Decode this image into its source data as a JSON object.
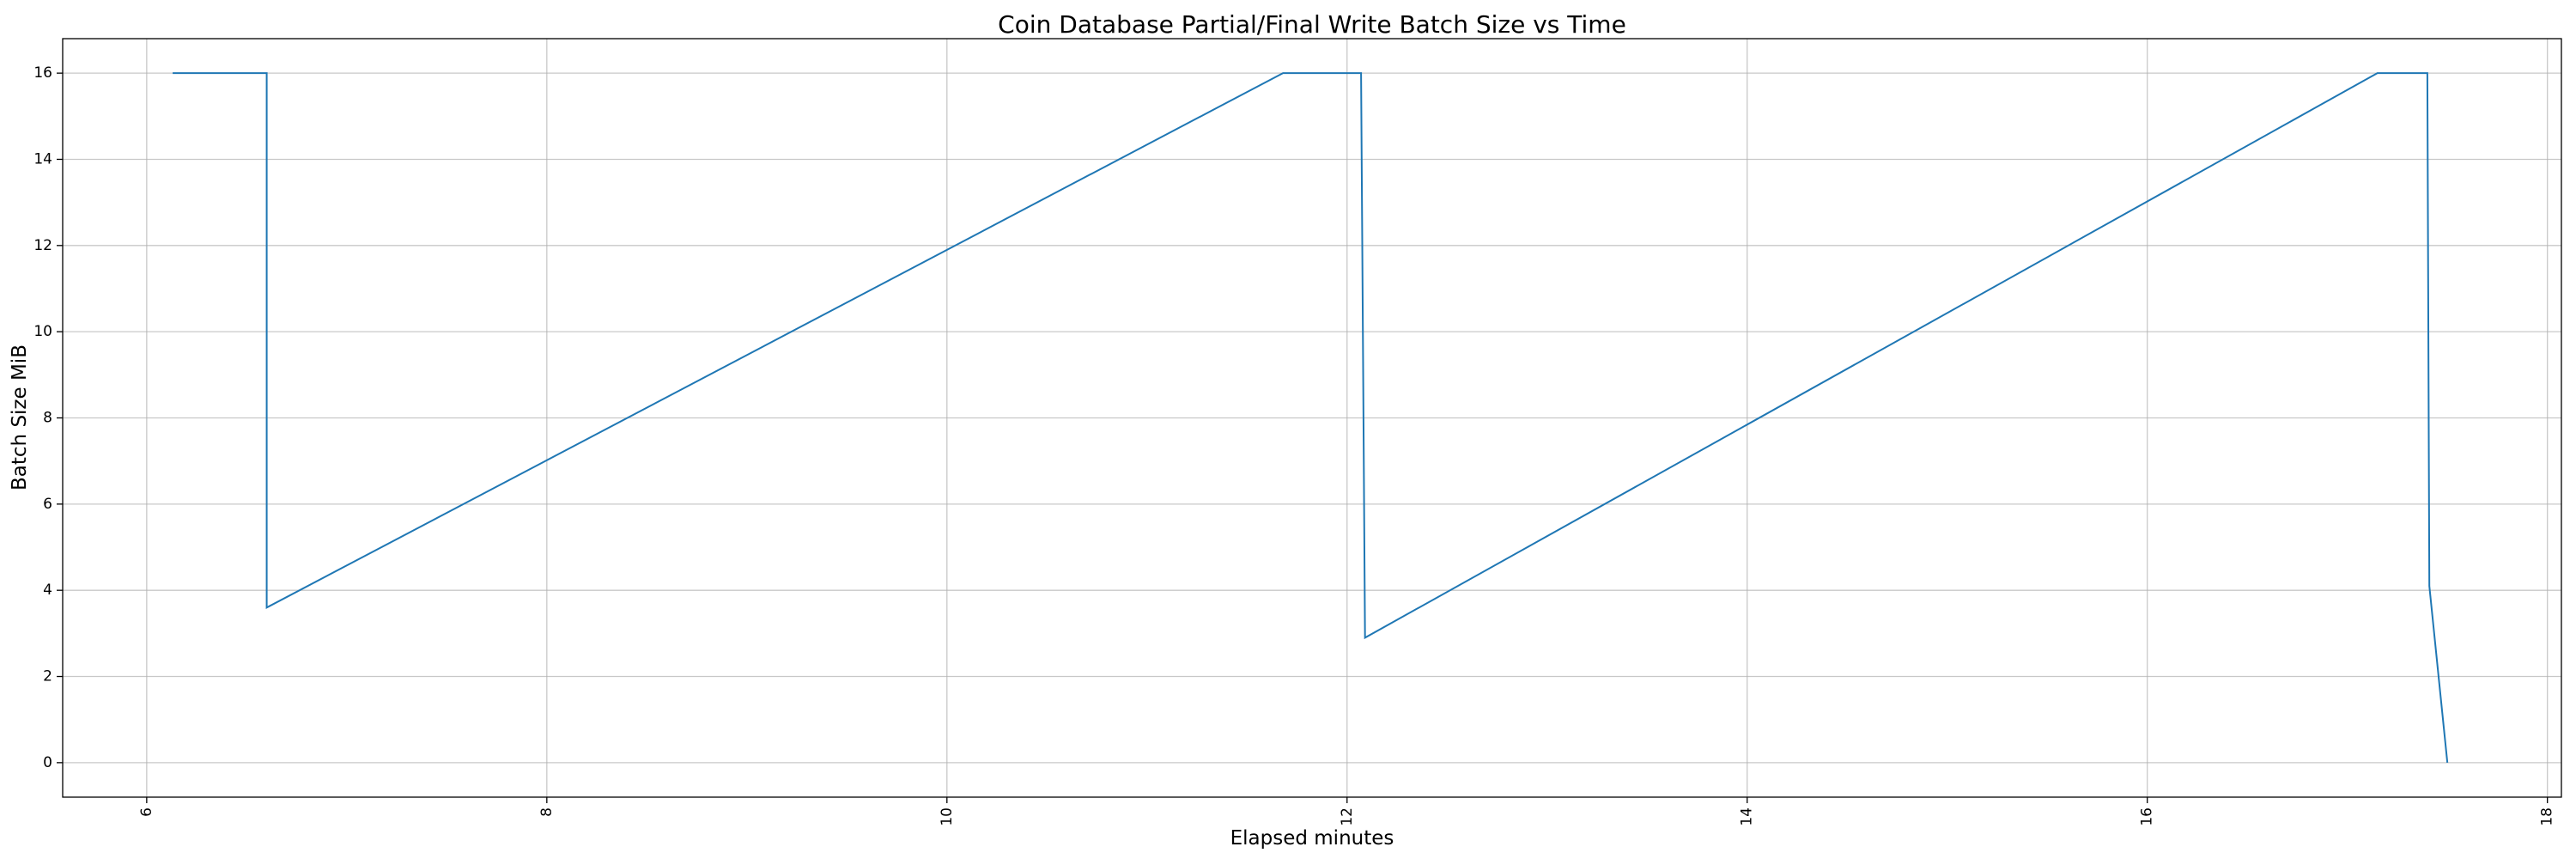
{
  "chart_data": {
    "type": "line",
    "title": "Coin Database Partial/Final Write Batch Size vs Time",
    "xlabel": "Elapsed minutes",
    "ylabel": "Batch Size MiB",
    "xlim": [
      5.58,
      18.07
    ],
    "ylim": [
      -0.8,
      16.8
    ],
    "xticks": [
      6,
      8,
      10,
      12,
      14,
      16,
      18
    ],
    "yticks": [
      0,
      2,
      4,
      6,
      8,
      10,
      12,
      14,
      16
    ],
    "x_tick_rotation": "vertical",
    "grid": true,
    "line_color": "#1f77b4",
    "series": [
      {
        "x": [
          6.13,
          6.6,
          6.6,
          11.68,
          12.07,
          12.09,
          17.15,
          17.4,
          17.41,
          17.5
        ],
        "y": [
          16,
          16,
          3.6,
          16,
          16,
          2.9,
          16,
          16,
          4.1,
          0
        ]
      }
    ]
  }
}
